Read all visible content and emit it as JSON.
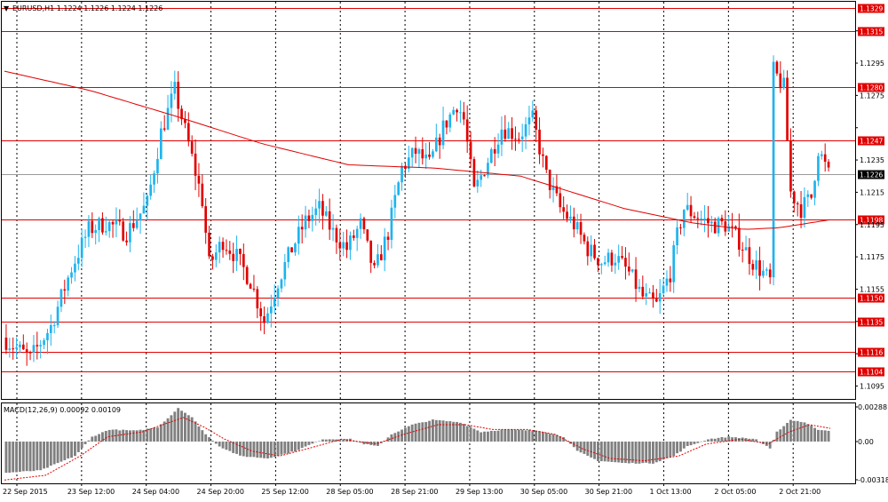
{
  "chart_data": [
    {
      "type": "candlestick",
      "title": "EURUSD,H1  1.1224 1.1226 1.1224 1.1226",
      "symbol": "EURUSD",
      "timeframe": "H1",
      "ohlc_header": [
        1.1224,
        1.1226,
        1.1224,
        1.1226
      ],
      "ylim": [
        1.1087,
        1.1333
      ],
      "y_ticks": [
        1.1095,
        1.1115,
        1.1135,
        1.1155,
        1.1175,
        1.1195,
        1.1215,
        1.1235,
        1.1255,
        1.1275,
        1.1295,
        1.1315
      ],
      "y_tick_labels": [
        "1.1095",
        "",
        "",
        "1.1155",
        "1.1175",
        "1.1195",
        "1.1215",
        "1.1235",
        "",
        "1.1275",
        "1.1295",
        ""
      ],
      "x_labels": [
        "22 Sep 2015",
        "23 Sep 12:00",
        "24 Sep 04:00",
        "24 Sep 20:00",
        "25 Sep 12:00",
        "28 Sep 05:00",
        "28 Sep 21:00",
        "29 Sep 13:00",
        "30 Sep 05:00",
        "30 Sep 21:00",
        "1 Oct 13:00",
        "2 Oct 05:00",
        "2 Oct 21:00"
      ],
      "bar_count": 240,
      "horizontal_levels": [
        1.1329,
        1.1315,
        1.128,
        1.1247,
        1.1198,
        1.115,
        1.1135,
        1.1116,
        1.1104
      ],
      "current_price": 1.1226,
      "price_path": [
        [
          0,
          1.1125
        ],
        [
          8,
          1.1112
        ],
        [
          14,
          1.1132
        ],
        [
          20,
          1.1168
        ],
        [
          25,
          1.1192
        ],
        [
          30,
          1.1196
        ],
        [
          36,
          1.119
        ],
        [
          42,
          1.1208
        ],
        [
          46,
          1.1252
        ],
        [
          50,
          1.1278
        ],
        [
          54,
          1.1245
        ],
        [
          58,
          1.121
        ],
        [
          60,
          1.117
        ],
        [
          64,
          1.1185
        ],
        [
          68,
          1.1175
        ],
        [
          72,
          1.116
        ],
        [
          76,
          1.1135
        ],
        [
          80,
          1.116
        ],
        [
          84,
          1.118
        ],
        [
          88,
          1.1197
        ],
        [
          92,
          1.1205
        ],
        [
          96,
          1.119
        ],
        [
          100,
          1.118
        ],
        [
          104,
          1.1195
        ],
        [
          108,
          1.1165
        ],
        [
          112,
          1.119
        ],
        [
          116,
          1.123
        ],
        [
          120,
          1.124
        ],
        [
          124,
          1.1232
        ],
        [
          128,
          1.1255
        ],
        [
          132,
          1.127
        ],
        [
          134,
          1.126
        ],
        [
          137,
          1.1215
        ],
        [
          141,
          1.1235
        ],
        [
          145,
          1.1255
        ],
        [
          150,
          1.125
        ],
        [
          154,
          1.126
        ],
        [
          158,
          1.1225
        ],
        [
          162,
          1.1205
        ],
        [
          166,
          1.1195
        ],
        [
          170,
          1.118
        ],
        [
          174,
          1.1172
        ],
        [
          178,
          1.1175
        ],
        [
          182,
          1.1165
        ],
        [
          186,
          1.115
        ],
        [
          190,
          1.1145
        ],
        [
          194,
          1.1165
        ],
        [
          196,
          1.1188
        ],
        [
          198,
          1.1205
        ],
        [
          202,
          1.12
        ],
        [
          206,
          1.1195
        ],
        [
          210,
          1.1195
        ],
        [
          214,
          1.1185
        ],
        [
          218,
          1.1172
        ],
        [
          221,
          1.1165
        ],
        [
          223,
          1.116
        ],
        [
          224,
          1.129
        ],
        [
          227,
          1.128
        ],
        [
          229,
          1.1215
        ],
        [
          232,
          1.1205
        ],
        [
          235,
          1.1212
        ],
        [
          237,
          1.1242
        ],
        [
          240,
          1.1226
        ]
      ],
      "moving_average": {
        "color": "#e00000",
        "values": [
          [
            0,
            1.129
          ],
          [
            25,
            1.1278
          ],
          [
            50,
            1.1262
          ],
          [
            75,
            1.1245
          ],
          [
            100,
            1.1232
          ],
          [
            125,
            1.123
          ],
          [
            150,
            1.1225
          ],
          [
            165,
            1.1215
          ],
          [
            180,
            1.1205
          ],
          [
            200,
            1.1196
          ],
          [
            215,
            1.1192
          ],
          [
            225,
            1.1193
          ],
          [
            240,
            1.1198
          ]
        ]
      },
      "colors": {
        "bull": "#1eb4ee",
        "bear": "#e00000",
        "level": "#e00000",
        "grid": "#000000"
      }
    },
    {
      "type": "histogram",
      "title": "MACD(12,26,9) 0.00092 0.00109",
      "indicator": "MACD",
      "params": [
        12,
        26,
        9
      ],
      "values_header": [
        0.00092,
        0.00109
      ],
      "ylim": [
        -0.00318,
        0.00288
      ],
      "y_ticks": [
        0.00288,
        0.0,
        -0.00318
      ],
      "y_tick_labels": [
        "0.00288",
        "0.00",
        "-0.00318"
      ],
      "histogram_path": [
        [
          0,
          -0.0026
        ],
        [
          10,
          -0.0024
        ],
        [
          20,
          -0.0012
        ],
        [
          25,
          0.0004
        ],
        [
          30,
          0.001
        ],
        [
          38,
          0.0009
        ],
        [
          44,
          0.0012
        ],
        [
          48,
          0.0022
        ],
        [
          50,
          0.0028
        ],
        [
          54,
          0.002
        ],
        [
          58,
          0.0006
        ],
        [
          62,
          -0.0004
        ],
        [
          68,
          -0.0012
        ],
        [
          76,
          -0.0014
        ],
        [
          84,
          -0.0008
        ],
        [
          92,
          0.0002
        ],
        [
          100,
          0.0002
        ],
        [
          104,
          -0.0002
        ],
        [
          108,
          -0.0004
        ],
        [
          112,
          0.0006
        ],
        [
          118,
          0.0014
        ],
        [
          124,
          0.0018
        ],
        [
          132,
          0.0016
        ],
        [
          138,
          0.0008
        ],
        [
          145,
          0.001
        ],
        [
          155,
          0.0009
        ],
        [
          162,
          0.0004
        ],
        [
          166,
          -0.0008
        ],
        [
          172,
          -0.0016
        ],
        [
          180,
          -0.0018
        ],
        [
          188,
          -0.0018
        ],
        [
          194,
          -0.0012
        ],
        [
          198,
          -0.0004
        ],
        [
          204,
          0.0002
        ],
        [
          210,
          0.0004
        ],
        [
          218,
          0.0002
        ],
        [
          222,
          -0.0006
        ],
        [
          224,
          0.0008
        ],
        [
          228,
          0.0018
        ],
        [
          232,
          0.0016
        ],
        [
          236,
          0.001
        ],
        [
          240,
          0.0009
        ]
      ],
      "signal_path": [
        [
          0,
          -0.0032
        ],
        [
          12,
          -0.0028
        ],
        [
          22,
          -0.0012
        ],
        [
          30,
          0.0004
        ],
        [
          40,
          0.0008
        ],
        [
          48,
          0.0016
        ],
        [
          52,
          0.002
        ],
        [
          58,
          0.0012
        ],
        [
          64,
          0.0002
        ],
        [
          72,
          -0.0008
        ],
        [
          80,
          -0.0012
        ],
        [
          88,
          -0.0006
        ],
        [
          98,
          0.0002
        ],
        [
          108,
          -0.0002
        ],
        [
          116,
          0.0006
        ],
        [
          126,
          0.0014
        ],
        [
          134,
          0.0014
        ],
        [
          142,
          0.001
        ],
        [
          152,
          0.001
        ],
        [
          160,
          0.0006
        ],
        [
          168,
          -0.0006
        ],
        [
          176,
          -0.0014
        ],
        [
          186,
          -0.0016
        ],
        [
          196,
          -0.0012
        ],
        [
          204,
          -0.0002
        ],
        [
          214,
          0.0002
        ],
        [
          222,
          -0.0002
        ],
        [
          228,
          0.0008
        ],
        [
          234,
          0.0014
        ],
        [
          240,
          0.0011
        ]
      ],
      "colors": {
        "histogram": "#808080",
        "signal": "#e00000"
      }
    }
  ]
}
